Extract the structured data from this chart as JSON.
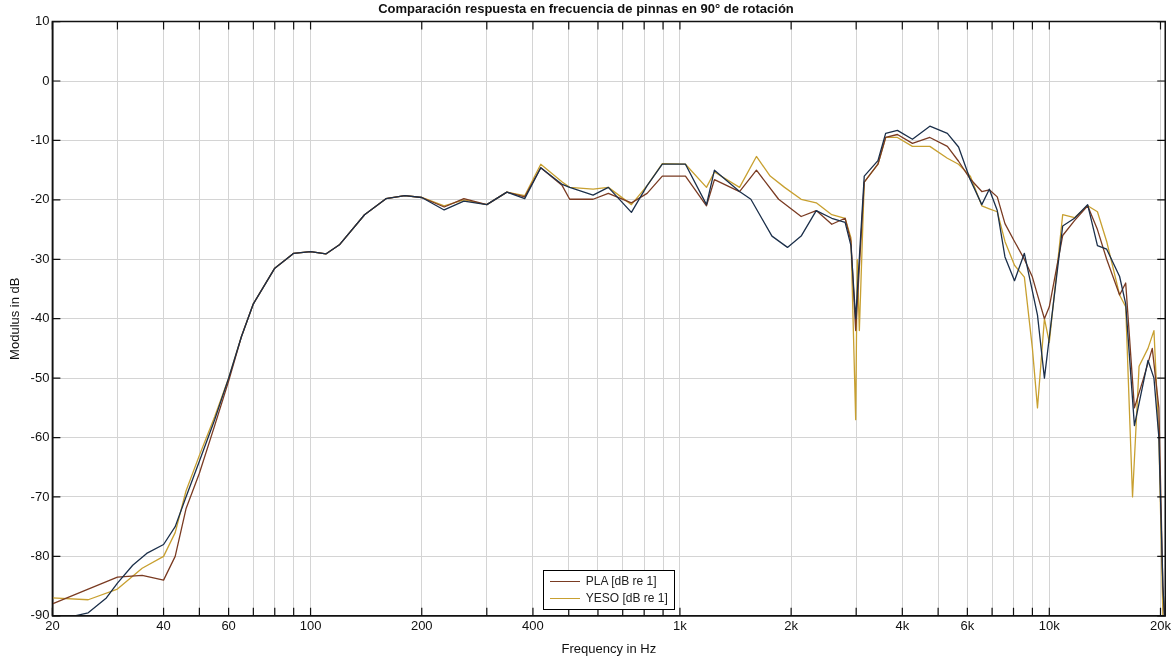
{
  "chart_data": {
    "type": "line",
    "title": "Comparación respuesta en frecuencia de pinnas en 90° de rotación",
    "xlabel": "Frequency in Hz",
    "ylabel": "Modulus in dB",
    "log": "x",
    "grid": true,
    "legend": "bottom",
    "marker": "none",
    "line_style": "solid",
    "xlim": [
      20,
      20600
    ],
    "ylim": [
      -90,
      10
    ],
    "xticks": [
      20,
      {
        "value": 30,
        "label": null
      },
      40,
      {
        "value": 50,
        "label": null
      },
      60,
      {
        "value": 70,
        "label": null
      },
      {
        "value": 80,
        "label": null
      },
      {
        "value": 90,
        "label": null
      },
      100,
      200,
      {
        "value": 300,
        "label": null
      },
      400,
      {
        "value": 500,
        "label": null
      },
      {
        "value": 600,
        "label": null
      },
      {
        "value": 700,
        "label": null
      },
      {
        "value": 800,
        "label": null
      },
      {
        "value": 900,
        "label": null
      },
      {
        "value": 1000,
        "label": "1k"
      },
      {
        "value": 2000,
        "label": "2k"
      },
      {
        "value": 3000,
        "label": null
      },
      {
        "value": 4000,
        "label": "4k"
      },
      {
        "value": 5000,
        "label": null
      },
      {
        "value": 6000,
        "label": "6k"
      },
      {
        "value": 7000,
        "label": null
      },
      {
        "value": 8000,
        "label": null
      },
      {
        "value": 9000,
        "label": null
      },
      {
        "value": 10000,
        "label": "10k"
      },
      {
        "value": 20000,
        "label": "20k"
      }
    ],
    "yticks": [
      -90,
      -80,
      -70,
      -60,
      -50,
      -40,
      -30,
      -20,
      -10,
      0,
      10
    ],
    "series": [
      {
        "color": "#1b2f4a",
        "x": [
          23,
          25,
          28,
          30,
          33,
          36,
          40,
          43,
          46,
          50,
          55,
          60,
          65,
          70,
          80,
          90,
          100,
          110,
          120,
          140,
          160,
          180,
          200,
          230,
          260,
          300,
          340,
          380,
          420,
          480,
          503,
          582,
          640,
          739,
          815,
          896,
          1035,
          1180,
          1240,
          1450,
          1556,
          1775,
          1955,
          2129,
          2339,
          2577,
          2800,
          2904,
          2991,
          3155,
          3436,
          3605,
          3880,
          4260,
          4749,
          5297,
          5680,
          6110,
          6565,
          6880,
          7230,
          7585,
          8050,
          8560,
          9290,
          9700,
          10870,
          11700,
          12700,
          13500,
          14300,
          15500,
          16100,
          17000,
          18500,
          19200,
          19800,
          20300,
          20500
        ],
        "values": [
          -90,
          -89.5,
          -87,
          -84.5,
          -81.5,
          -79.5,
          -78,
          -75,
          -70,
          -64,
          -57,
          -50,
          -43,
          -37.5,
          -31.5,
          -29,
          -28.7,
          -29.1,
          -27.5,
          -22.5,
          -19.8,
          -19.3,
          -19.6,
          -21.7,
          -20.2,
          -20.8,
          -18.7,
          -19.8,
          -14.6,
          -17.4,
          -17.9,
          -19.2,
          -17.9,
          -22.1,
          -17.6,
          -14,
          -14,
          -20.8,
          -15,
          -18.6,
          -19.9,
          -26.1,
          -28,
          -26.1,
          -21.8,
          -23.1,
          -23.8,
          -27.7,
          -40,
          -16,
          -13.4,
          -8.8,
          -8.3,
          -9.8,
          -7.6,
          -8.8,
          -11.1,
          -16.6,
          -20.8,
          -18.2,
          -21.8,
          -29.6,
          -33.6,
          -29,
          -39.4,
          -50,
          -24.4,
          -23.1,
          -20.8,
          -27.7,
          -28.3,
          -32.9,
          -37.5,
          -58,
          -47,
          -50,
          -60,
          -85,
          -90
        ]
      },
      {
        "name": "PLA [dB re 1]",
        "color": "#7a3b22",
        "x": [
          20,
          25,
          30,
          35,
          40,
          43,
          46,
          50,
          55,
          60,
          65,
          70,
          80,
          90,
          100,
          110,
          120,
          140,
          160,
          180,
          200,
          230,
          260,
          300,
          340,
          380,
          420,
          480,
          503,
          582,
          640,
          739,
          815,
          896,
          1035,
          1180,
          1240,
          1450,
          1611,
          1850,
          2129,
          2339,
          2577,
          2800,
          2904,
          2991,
          3155,
          3436,
          3605,
          3880,
          4260,
          4749,
          5297,
          5680,
          6110,
          6565,
          6880,
          7230,
          7585,
          8050,
          8560,
          9000,
          9290,
          9700,
          10000,
          10870,
          11700,
          12700,
          13500,
          14300,
          15500,
          16100,
          17000,
          18000,
          19000,
          19800,
          20300,
          20500
        ],
        "values": [
          -88,
          -85.5,
          -83.5,
          -83.2,
          -84,
          -80,
          -72,
          -66,
          -58,
          -50.5,
          -43,
          -37.5,
          -31.5,
          -29,
          -28.7,
          -29.1,
          -27.5,
          -22.5,
          -19.8,
          -19.3,
          -19.6,
          -21.2,
          -19.8,
          -20.8,
          -18.7,
          -19.5,
          -14.6,
          -17.6,
          -19.9,
          -19.9,
          -18.9,
          -20.5,
          -18.9,
          -16,
          -16,
          -21,
          -16.6,
          -18.6,
          -15,
          -19.9,
          -22.8,
          -21.8,
          -24.1,
          -23.1,
          -27,
          -42,
          -17,
          -14,
          -9.5,
          -9,
          -10.5,
          -9.5,
          -11,
          -13.5,
          -16.5,
          -18.6,
          -18.3,
          -19.5,
          -24,
          -27,
          -30,
          -33,
          -36,
          -40,
          -38,
          -26,
          -23.5,
          -21,
          -25,
          -30,
          -36,
          -34,
          -55,
          -50,
          -45,
          -55,
          -85,
          -90
        ]
      },
      {
        "name": "YESO [dB re 1]",
        "color": "#c8a030",
        "x": [
          20,
          25,
          30,
          35,
          40,
          43,
          46,
          50,
          55,
          60,
          65,
          70,
          80,
          90,
          100,
          110,
          120,
          140,
          160,
          180,
          200,
          230,
          260,
          300,
          340,
          380,
          420,
          480,
          503,
          582,
          640,
          739,
          815,
          896,
          1035,
          1180,
          1240,
          1450,
          1611,
          1755,
          1920,
          2129,
          2339,
          2577,
          2800,
          2904,
          2991,
          3020,
          3060,
          3155,
          3436,
          3605,
          3880,
          4260,
          4749,
          5297,
          5680,
          6110,
          6565,
          6880,
          7230,
          7585,
          8050,
          8560,
          9000,
          9290,
          9700,
          10000,
          10870,
          11700,
          12700,
          13500,
          14300,
          15500,
          16100,
          16800,
          17500,
          18500,
          19200,
          19800,
          20300
        ],
        "values": [
          -87,
          -87.3,
          -85.5,
          -82,
          -80,
          -76,
          -69,
          -63,
          -56.5,
          -50,
          -43,
          -37.5,
          -31.5,
          -29,
          -28.7,
          -29.1,
          -27.5,
          -22.5,
          -19.8,
          -19.3,
          -19.6,
          -21,
          -20,
          -20.8,
          -18.7,
          -19.3,
          -14,
          -17,
          -17.9,
          -18.2,
          -17.9,
          -20.8,
          -17.6,
          -13.9,
          -14,
          -17.9,
          -15.3,
          -17.9,
          -12.7,
          -16,
          -17.9,
          -19.9,
          -20.5,
          -22.5,
          -23.1,
          -26.4,
          -57,
          -30,
          -42,
          -17,
          -14,
          -9.5,
          -9.5,
          -11,
          -11,
          -13,
          -14,
          -16,
          -21,
          -21.5,
          -22,
          -27,
          -31,
          -33,
          -45,
          -55,
          -40,
          -44,
          -22.5,
          -23,
          -21,
          -22,
          -27,
          -36,
          -38,
          -70,
          -48,
          -45,
          -42,
          -60,
          -90
        ]
      }
    ]
  }
}
